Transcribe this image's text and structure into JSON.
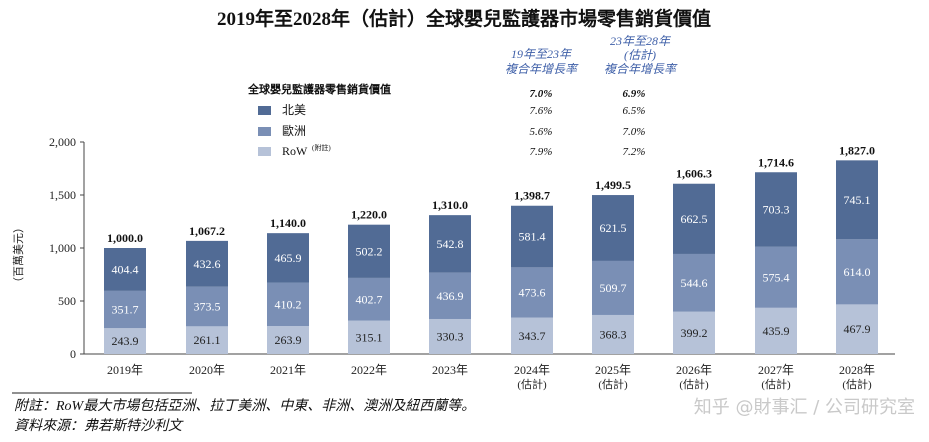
{
  "chart_data": {
    "type": "bar",
    "stacked": true,
    "title": "2019年至2028年（估計）全球嬰兒監護器市場零售銷貨價值",
    "ylabel": "（百萬美元）",
    "ylim": [
      0,
      2000
    ],
    "yticks": [
      "0",
      "500",
      "1,000",
      "1,500",
      "2,000"
    ],
    "ytick_values": [
      0,
      500,
      1000,
      1500,
      2000
    ],
    "categories": [
      {
        "year": "2019年",
        "note": ""
      },
      {
        "year": "2020年",
        "note": ""
      },
      {
        "year": "2021年",
        "note": ""
      },
      {
        "year": "2022年",
        "note": ""
      },
      {
        "year": "2023年",
        "note": ""
      },
      {
        "year": "2024年",
        "note": "(估計)"
      },
      {
        "year": "2025年",
        "note": "(估計)"
      },
      {
        "year": "2026年",
        "note": "(估計)"
      },
      {
        "year": "2027年",
        "note": "(估計)"
      },
      {
        "year": "2028年",
        "note": "(估計)"
      }
    ],
    "series": [
      {
        "name": "RoW",
        "values": [
          243.9,
          261.1,
          263.9,
          315.1,
          330.3,
          343.7,
          368.3,
          399.2,
          435.9,
          467.9
        ],
        "labels": [
          "243.9",
          "261.1",
          "263.9",
          "315.1",
          "330.3",
          "343.7",
          "368.3",
          "399.2",
          "435.9",
          "467.9"
        ]
      },
      {
        "name": "歐洲",
        "values": [
          351.7,
          373.5,
          410.2,
          402.7,
          436.9,
          473.6,
          509.7,
          544.6,
          575.4,
          614.0
        ],
        "labels": [
          "351.7",
          "373.5",
          "410.2",
          "402.7",
          "436.9",
          "473.6",
          "509.7",
          "544.6",
          "575.4",
          "614.0"
        ]
      },
      {
        "name": "北美",
        "values": [
          404.4,
          432.6,
          465.9,
          502.2,
          542.8,
          581.4,
          621.5,
          662.5,
          703.3,
          745.1
        ],
        "labels": [
          "404.4",
          "432.6",
          "465.9",
          "502.2",
          "542.8",
          "581.4",
          "621.5",
          "662.5",
          "703.3",
          "745.1"
        ]
      }
    ],
    "totals": [
      1000.0,
      1067.2,
      1140.0,
      1220.0,
      1310.0,
      1398.7,
      1499.5,
      1606.3,
      1714.6,
      1827.0
    ],
    "total_labels": [
      "1,000.0",
      "1,067.2",
      "1,140.0",
      "1,220.0",
      "1,310.0",
      "1,398.7",
      "1,499.5",
      "1,606.3",
      "1,714.6",
      "1,827.0"
    ],
    "legend": {
      "title": "全球嬰兒監護器零售銷貨價值",
      "items": [
        {
          "name": "北美",
          "color": "#516b95",
          "cagr1": "7.6%",
          "cagr2": "6.5%"
        },
        {
          "name": "歐洲",
          "color": "#7a8fb5",
          "cagr1": "5.6%",
          "cagr2": "7.0%"
        },
        {
          "name": "RoW",
          "sup": "(附註)",
          "color": "#b6c2d8",
          "cagr1": "7.9%",
          "cagr2": "7.2%"
        }
      ]
    },
    "cagr_headers": {
      "col1": [
        "19年至23年",
        "複合年增長率"
      ],
      "col2": [
        "23年至28年",
        "(估計)",
        "複合年增長率"
      ]
    },
    "cagr_total": {
      "cagr1": "7.0%",
      "cagr2": "6.9%"
    },
    "footnotes": [
      "附註：RoW最大市場包括亞洲、拉丁美洲、中東、非洲、澳洲及紐西蘭等。",
      "資料來源：弗若斯特沙利文"
    ],
    "watermark": "知乎 @財事汇 / 公司研究室"
  }
}
